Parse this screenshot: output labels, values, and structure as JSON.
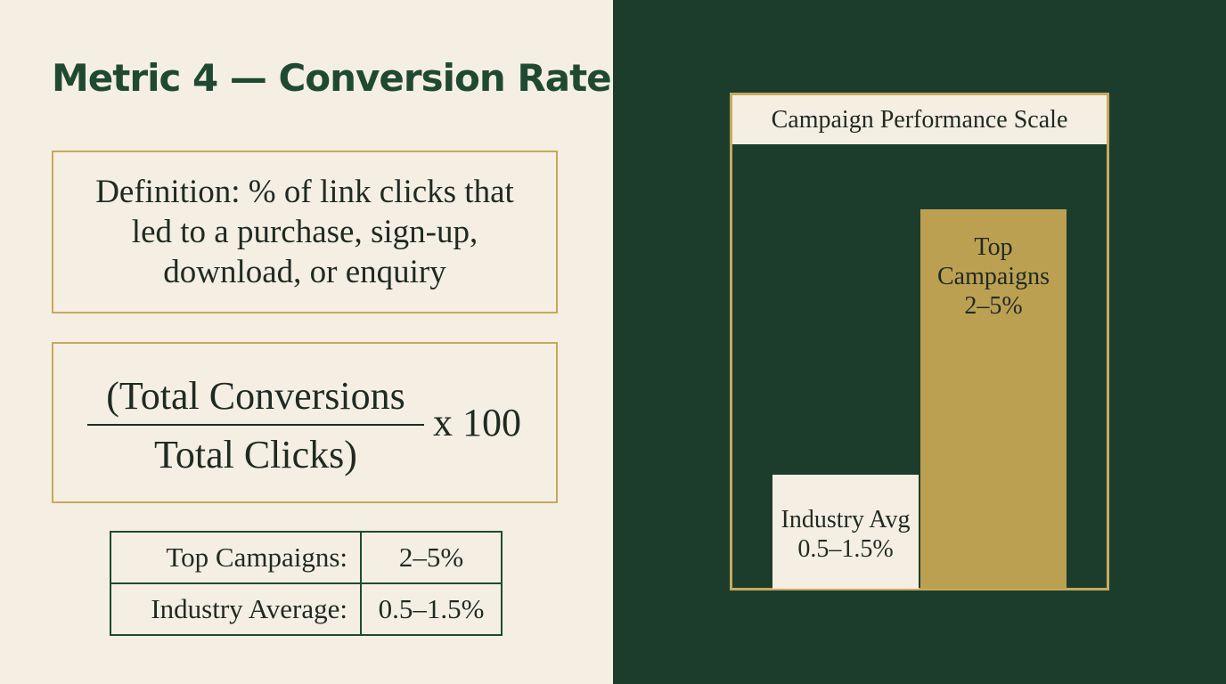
{
  "slide": {
    "title": "Metric 4 — Conversion Rate",
    "definition": "Definition: % of link clicks that led to a purchase, sign-up, download, or enquiry",
    "formula": {
      "numerator": "(Total Conversions",
      "denominator": "Total Clicks)",
      "multiplier": "x 100"
    },
    "benchmarks": [
      {
        "label": "Top Campaigns:",
        "value": "2–5%"
      },
      {
        "label": "Industry Average:",
        "value": "0.5–1.5%"
      }
    ]
  },
  "chart_data": {
    "type": "bar",
    "title": "Campaign Performance Scale",
    "categories": [
      "Industry Avg",
      "Top Campaigns"
    ],
    "ranges": [
      [
        0.5,
        1.5
      ],
      [
        2,
        5
      ]
    ],
    "values": [
      1.5,
      5
    ],
    "value_labels": [
      "0.5–1.5%",
      "2–5%"
    ],
    "ylim": [
      0,
      5.85
    ],
    "axes_visible": false,
    "grid": false,
    "legend": "none",
    "colors": {
      "industry_bar": "#f5efe3",
      "top_bar": "#bca052",
      "background": "#1d3d2c",
      "frame": "#c6a95c"
    }
  }
}
